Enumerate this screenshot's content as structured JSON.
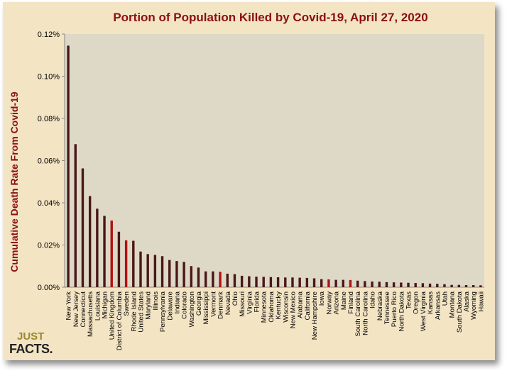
{
  "logo": {
    "line1": "JUST",
    "line2": "FACTS."
  },
  "colors": {
    "background": "#f3e4c4",
    "plot_area": "#ded9c6",
    "bar_default": "#4a1717",
    "bar_highlight": "#b21010",
    "title": "#8b1010"
  },
  "chart_data": {
    "type": "bar",
    "title": "Portion of Population Killed by Covid-19, April 27, 2020",
    "xlabel": "",
    "ylabel": "Cumulative Death Rate From Covid-19",
    "ylim": [
      0,
      0.12
    ],
    "yticks": [
      "0.00%",
      "0.02%",
      "0.04%",
      "0.06%",
      "0.08%",
      "0.10%",
      "0.12%"
    ],
    "grid": false,
    "highlighted_categories": [
      "United Kingdom",
      "Sweden",
      "Denmark",
      "Norway",
      "Finland"
    ],
    "categories": [
      "New York",
      "New Jersey",
      "Connecticut",
      "Massachusetts",
      "Louisiana",
      "Michigan",
      "United Kingdom",
      "District of Columbia",
      "Sweden",
      "Rhode Island",
      "United States",
      "Maryland",
      "Illinois",
      "Pennsylvania",
      "Delaware",
      "Indiana",
      "Colorado",
      "Washington",
      "Georgia",
      "Mississippi",
      "Vermont",
      "Denmark",
      "Nevada",
      "Ohio",
      "Missouri",
      "Virginia",
      "Florida",
      "Minnesota",
      "Oklahoma",
      "Kentucky",
      "Wisconsin",
      "New Mexico",
      "Alabama",
      "California",
      "New Hampshire",
      "Iowa",
      "Norway",
      "Arizona",
      "Maine",
      "Finland",
      "South Carolina",
      "North Carolina",
      "Idaho",
      "Nebraska",
      "Tennessee",
      "Puerto Rico",
      "North Dakota",
      "Texas",
      "Oregon",
      "West Virginia",
      "Kansas",
      "Arkansas",
      "Utah",
      "Montana",
      "South Dakota",
      "Alaska",
      "Wyoming",
      "Hawaii"
    ],
    "values": [
      0.1145,
      0.0678,
      0.0563,
      0.0432,
      0.0372,
      0.0338,
      0.0316,
      0.0263,
      0.0222,
      0.022,
      0.0169,
      0.0157,
      0.0153,
      0.0147,
      0.0129,
      0.0124,
      0.012,
      0.01,
      0.0093,
      0.0075,
      0.0075,
      0.0073,
      0.0064,
      0.0062,
      0.0054,
      0.0052,
      0.005,
      0.0049,
      0.0048,
      0.0047,
      0.0046,
      0.0046,
      0.0045,
      0.0044,
      0.0042,
      0.0038,
      0.0037,
      0.0035,
      0.0035,
      0.0034,
      0.0031,
      0.0029,
      0.0027,
      0.0026,
      0.0024,
      0.0023,
      0.0022,
      0.0021,
      0.002,
      0.0019,
      0.0017,
      0.0016,
      0.0014,
      0.0011,
      0.0011,
      0.001,
      0.001,
      0.0009
    ]
  }
}
